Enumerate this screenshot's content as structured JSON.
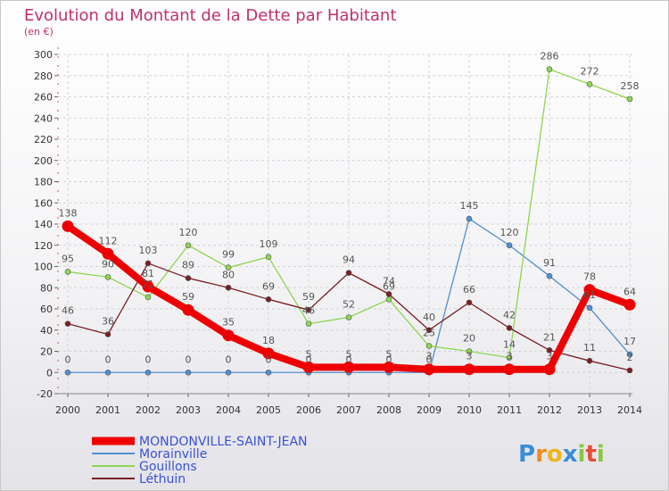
{
  "chart_data": {
    "type": "line",
    "title": "Evolution du Montant de la Dette par Habitant",
    "subtitle": "(en €)",
    "xlabel": "",
    "ylabel": "",
    "ylim": [
      -20,
      300
    ],
    "y_ticks": [
      "-20",
      "0",
      "20",
      "40",
      "60",
      "80",
      "100",
      "120",
      "140",
      "160",
      "180",
      "200",
      "220",
      "240",
      "260",
      "280",
      "300"
    ],
    "categories": [
      "2000",
      "2001",
      "2002",
      "2003",
      "2004",
      "2005",
      "2006",
      "2007",
      "2008",
      "2009",
      "2010",
      "2011",
      "2012",
      "2013",
      "2014"
    ],
    "series": [
      {
        "name": "MONDONVILLE-SAINT-JEAN",
        "color": "#ee0000",
        "emphasis": "thick",
        "values": [
          138,
          112,
          81,
          59,
          35,
          18,
          5,
          5,
          5,
          3,
          3,
          3,
          3,
          78,
          64
        ],
        "labels": [
          "138",
          "112",
          "81",
          "59",
          "35",
          "18",
          "5",
          "5",
          "5",
          "3",
          "3",
          "3",
          "3",
          "78",
          "64"
        ]
      },
      {
        "name": "Morainville",
        "color": "#4f90d0",
        "values": [
          0,
          0,
          0,
          0,
          0,
          0,
          0,
          0,
          0,
          0,
          145,
          120,
          91,
          61,
          17
        ],
        "labels": [
          "0",
          "0",
          "0",
          "0",
          "0",
          "0",
          "0",
          "0",
          "0",
          "0",
          "145",
          "120",
          "91",
          "61",
          "17"
        ]
      },
      {
        "name": "Gouillons",
        "color": "#8ed650",
        "values": [
          95,
          90,
          71,
          120,
          99,
          109,
          46,
          52,
          69,
          25,
          20,
          14,
          286,
          272,
          258
        ],
        "labels": [
          "95",
          "90",
          "71",
          "120",
          "99",
          "109",
          "46",
          "52",
          "69",
          "25",
          "20",
          "14",
          "286",
          "272",
          "258"
        ]
      },
      {
        "name": "Léthuin",
        "color": "#7a1e22",
        "values": [
          46,
          36,
          103,
          89,
          80,
          69,
          59,
          94,
          74,
          40,
          66,
          42,
          21,
          11,
          2
        ],
        "labels": [
          "46",
          "36",
          "103",
          "89",
          "80",
          "69",
          "59",
          "94",
          "74",
          "40",
          "66",
          "42",
          "21",
          "11",
          "2"
        ]
      }
    ],
    "legend_position": "bottom-left"
  },
  "branding": {
    "letters": [
      "P",
      "r",
      "o",
      "x",
      "i",
      "t",
      "i"
    ],
    "colors": [
      "#3a8ed6",
      "#f08a1c",
      "#f0b41c",
      "#3a8ed6",
      "#8cc63f",
      "#e84c3d",
      "#8cc63f"
    ]
  }
}
